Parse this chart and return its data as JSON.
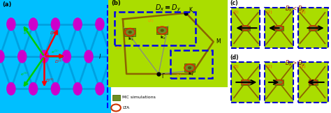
{
  "fig_width": 4.74,
  "fig_height": 1.62,
  "dpi": 100,
  "bg_color": "#ffffff",
  "panel_a": {
    "label": "(a)",
    "bg_color": "#00BFFF",
    "node_color": "#CC00CC",
    "bond_color": "#00A0E0",
    "green_arrow_color": "#00CC00",
    "red_arrow_color": "#FF0000",
    "magenta_arrow_color": "#CC00CC"
  },
  "panel_b": {
    "label": "(b)",
    "title": "$\\boldsymbol{D_x=D_y}$",
    "bg_color": "#AADD00",
    "bz_line_color": "#8B6400",
    "dot_color": "#000000",
    "dashed_color": "#0000EE",
    "orange_color": "#FF8C00",
    "skyrmion_fill": "#6B8E23",
    "skyrmion_ring": "#CC3300",
    "legend_text1": "MC simulations",
    "legend_text2": "LTA"
  },
  "panel_cd": {
    "bg_color": "#AADD00",
    "border_color": "#0000CD",
    "hex_color": "#8B6400",
    "skyrmion_fill": "#6B8E23",
    "skyrmion_ring": "#CC3300",
    "num_color": "#FF4500",
    "arrow_color": "#000000"
  }
}
